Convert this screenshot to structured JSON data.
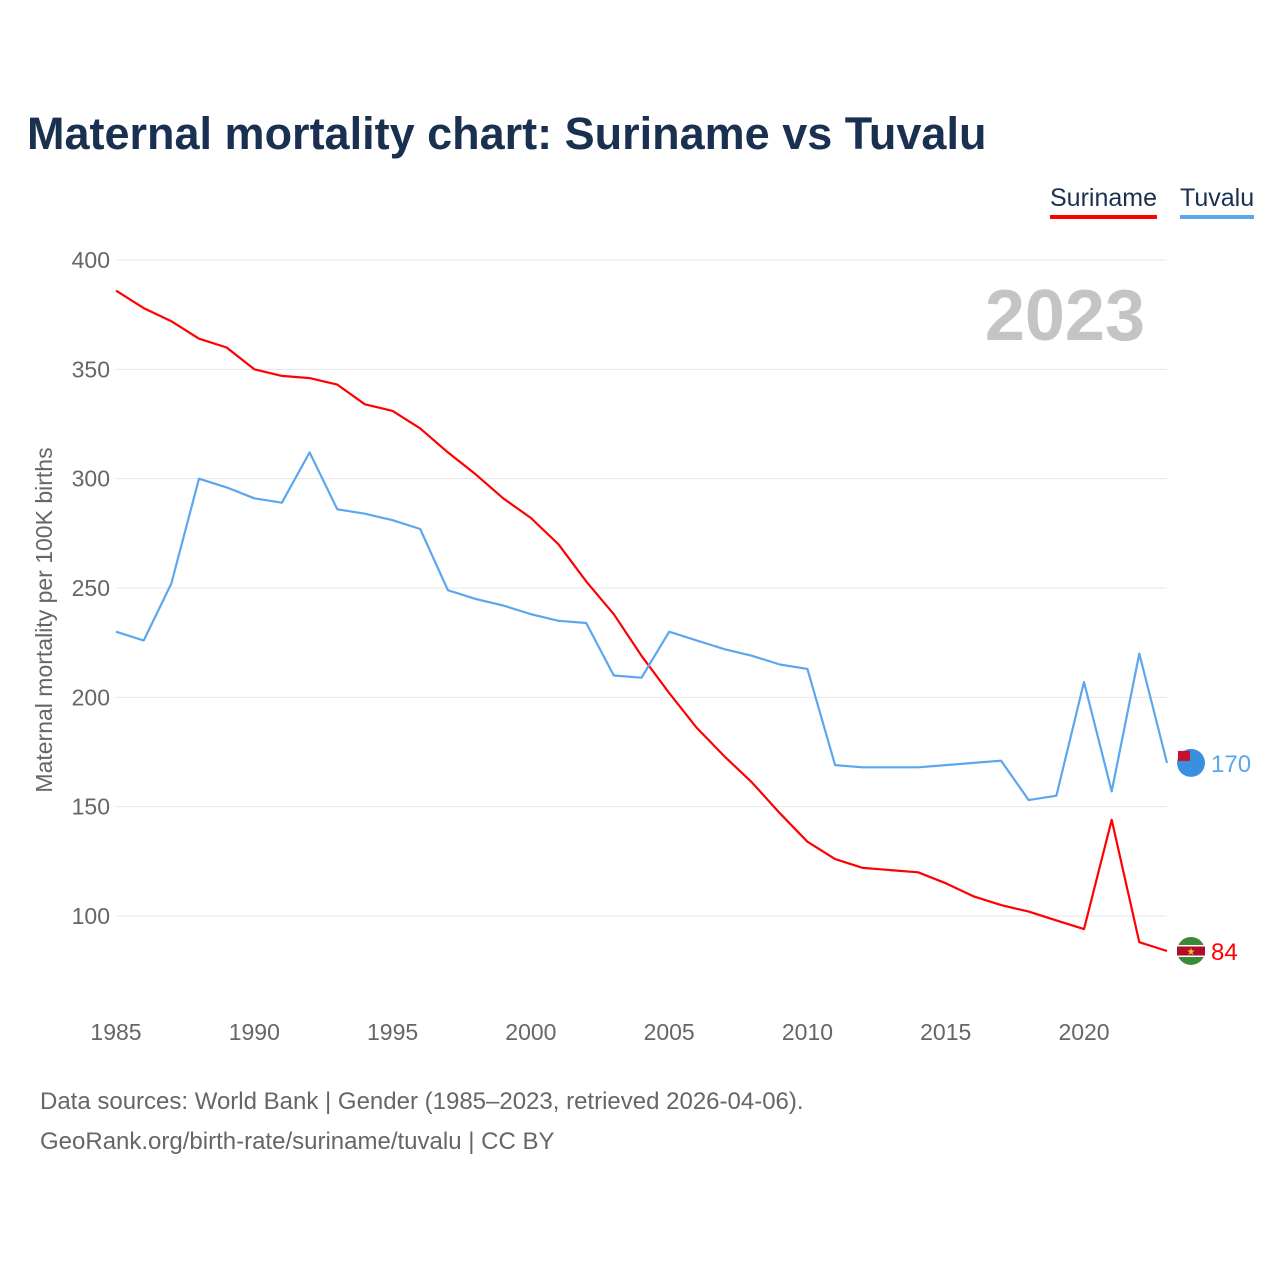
{
  "title": "Maternal mortality chart: Suriname vs Tuvalu",
  "legend": [
    "Suriname",
    "Tuvalu"
  ],
  "year_label": "2023",
  "footer": {
    "line1": "Data sources: World Bank | Gender (1985–2023, retrieved 2026-04-06).",
    "line2": "GeoRank.org/birth-rate/suriname/tuvalu | CC BY"
  },
  "chart_data": {
    "type": "line",
    "title": "Maternal mortality chart: Suriname vs Tuvalu",
    "xlabel": "",
    "ylabel": "Maternal mortality per 100K births",
    "xlim": [
      1985,
      2023
    ],
    "ylim": [
      70,
      400
    ],
    "xticks": [
      1985,
      1990,
      1995,
      2000,
      2005,
      2010,
      2015,
      2020
    ],
    "yticks": [
      100,
      150,
      200,
      250,
      300,
      350,
      400
    ],
    "grid": true,
    "legend_position": "top-right",
    "x": [
      1985,
      1986,
      1987,
      1988,
      1989,
      1990,
      1991,
      1992,
      1993,
      1994,
      1995,
      1996,
      1997,
      1998,
      1999,
      2000,
      2001,
      2002,
      2003,
      2004,
      2005,
      2006,
      2007,
      2008,
      2009,
      2010,
      2011,
      2012,
      2013,
      2014,
      2015,
      2016,
      2017,
      2018,
      2019,
      2020,
      2021,
      2022,
      2023
    ],
    "series": [
      {
        "name": "Suriname",
        "color": "#ff0000",
        "end_label": "84",
        "values": [
          386,
          378,
          372,
          364,
          360,
          350,
          347,
          346,
          343,
          334,
          331,
          323,
          312,
          302,
          291,
          282,
          270,
          253,
          238,
          219,
          202,
          186,
          173,
          161,
          147,
          134,
          126,
          122,
          121,
          120,
          115,
          109,
          105,
          102,
          98,
          94,
          144,
          88,
          84
        ]
      },
      {
        "name": "Tuvalu",
        "color": "#5aa7ee",
        "end_label": "170",
        "values": [
          230,
          226,
          252,
          300,
          296,
          291,
          289,
          312,
          286,
          284,
          281,
          277,
          249,
          245,
          242,
          238,
          235,
          234,
          210,
          209,
          230,
          226,
          222,
          219,
          215,
          213,
          169,
          168,
          168,
          168,
          169,
          170,
          171,
          153,
          155,
          207,
          157,
          220,
          170
        ]
      }
    ]
  }
}
